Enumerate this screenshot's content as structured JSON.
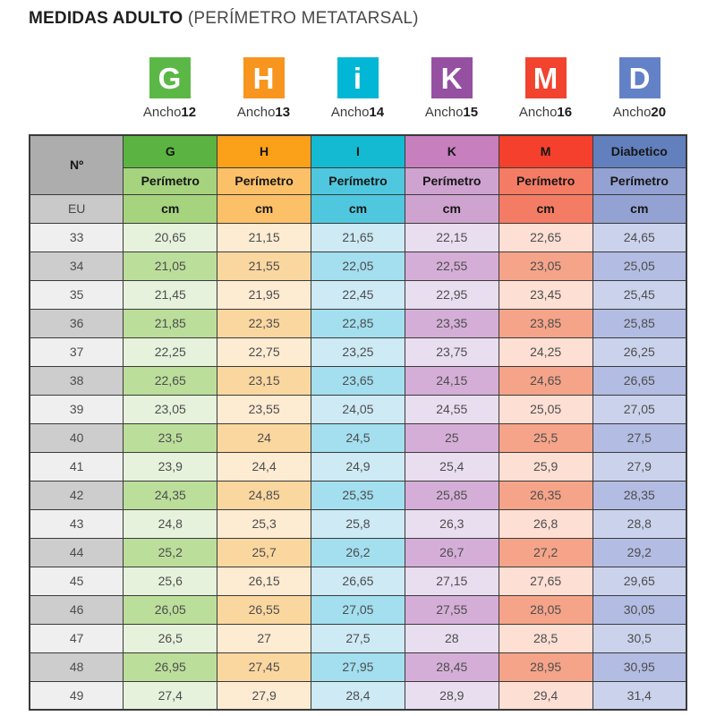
{
  "title": {
    "bold": "MEDIDAS ADULTO",
    "regular": "(PERÍMETRO METATARSAL)"
  },
  "badges": [
    {
      "letter": "G",
      "label": "Ancho",
      "width": "12",
      "color": "#5cb846"
    },
    {
      "letter": "H",
      "label": "Ancho",
      "width": "13",
      "color": "#f7951f"
    },
    {
      "letter": "i",
      "label": "Ancho",
      "width": "14",
      "color": "#02b7d6"
    },
    {
      "letter": "K",
      "label": "Ancho",
      "width": "15",
      "color": "#9550a1"
    },
    {
      "letter": "M",
      "label": "Ancho",
      "width": "16",
      "color": "#f2432f"
    },
    {
      "letter": "D",
      "label": "Ancho",
      "width": "20",
      "color": "#6381c6"
    }
  ],
  "chart_data": {
    "type": "table",
    "title": "MEDIDAS ADULTO (PERÍMETRO METATARSAL)",
    "corner_header": "Nº",
    "row_header_unit": "EU",
    "columns": [
      {
        "header": "G",
        "sub_label": "Perímetro",
        "unit": "cm",
        "header_bg": "#5bb441",
        "sub_bg": "#a6d37e",
        "light": "#e6f2dc",
        "medium": "#bcde9b"
      },
      {
        "header": "H",
        "sub_label": "Perímetro",
        "unit": "cm",
        "header_bg": "#fba019",
        "sub_bg": "#fcc068",
        "light": "#fdebd2",
        "medium": "#fbd7a0"
      },
      {
        "header": "I",
        "sub_label": "Perímetro",
        "unit": "cm",
        "header_bg": "#14bad2",
        "sub_bg": "#4fc8df",
        "light": "#cdeaf5",
        "medium": "#a3dfef"
      },
      {
        "header": "K",
        "sub_label": "Perímetro",
        "unit": "cm",
        "header_bg": "#c77fbe",
        "sub_bg": "#cfa3cf",
        "light": "#e9def0",
        "medium": "#d5aed8"
      },
      {
        "header": "M",
        "sub_label": "Perímetro",
        "unit": "cm",
        "header_bg": "#f4402c",
        "sub_bg": "#f57c64",
        "light": "#fddfd4",
        "medium": "#f5a489"
      },
      {
        "header": "Diabetico",
        "sub_label": "Perímetro",
        "unit": "cm",
        "header_bg": "#6280be",
        "sub_bg": "#93a2d2",
        "light": "#cbd3ec",
        "medium": "#b3bce2"
      }
    ],
    "rows": [
      {
        "size": "33",
        "values": [
          "20,65",
          "21,15",
          "21,65",
          "22,15",
          "22,65",
          "24,65"
        ]
      },
      {
        "size": "34",
        "values": [
          "21,05",
          "21,55",
          "22,05",
          "22,55",
          "23,05",
          "25,05"
        ]
      },
      {
        "size": "35",
        "values": [
          "21,45",
          "21,95",
          "22,45",
          "22,95",
          "23,45",
          "25,45"
        ]
      },
      {
        "size": "36",
        "values": [
          "21,85",
          "22,35",
          "22,85",
          "23,35",
          "23,85",
          "25,85"
        ]
      },
      {
        "size": "37",
        "values": [
          "22,25",
          "22,75",
          "23,25",
          "23,75",
          "24,25",
          "26,25"
        ]
      },
      {
        "size": "38",
        "values": [
          "22,65",
          "23,15",
          "23,65",
          "24,15",
          "24,65",
          "26,65"
        ]
      },
      {
        "size": "39",
        "values": [
          "23,05",
          "23,55",
          "24,05",
          "24,55",
          "25,05",
          "27,05"
        ]
      },
      {
        "size": "40",
        "values": [
          "23,5",
          "24",
          "24,5",
          "25",
          "25,5",
          "27,5"
        ]
      },
      {
        "size": "41",
        "values": [
          "23,9",
          "24,4",
          "24,9",
          "25,4",
          "25,9",
          "27,9"
        ]
      },
      {
        "size": "42",
        "values": [
          "24,35",
          "24,85",
          "25,35",
          "25,85",
          "26,35",
          "28,35"
        ]
      },
      {
        "size": "43",
        "values": [
          "24,8",
          "25,3",
          "25,8",
          "26,3",
          "26,8",
          "28,8"
        ]
      },
      {
        "size": "44",
        "values": [
          "25,2",
          "25,7",
          "26,2",
          "26,7",
          "27,2",
          "29,2"
        ]
      },
      {
        "size": "45",
        "values": [
          "25,6",
          "26,15",
          "26,65",
          "27,15",
          "27,65",
          "29,65"
        ]
      },
      {
        "size": "46",
        "values": [
          "26,05",
          "26,55",
          "27,05",
          "27,55",
          "28,05",
          "30,05"
        ]
      },
      {
        "size": "47",
        "values": [
          "26,5",
          "27",
          "27,5",
          "28",
          "28,5",
          "30,5"
        ]
      },
      {
        "size": "48",
        "values": [
          "26,95",
          "27,45",
          "27,95",
          "28,45",
          "28,95",
          "30,95"
        ]
      },
      {
        "size": "49",
        "values": [
          "27,4",
          "27,9",
          "28,4",
          "28,9",
          "29,4",
          "31,4"
        ]
      }
    ]
  }
}
